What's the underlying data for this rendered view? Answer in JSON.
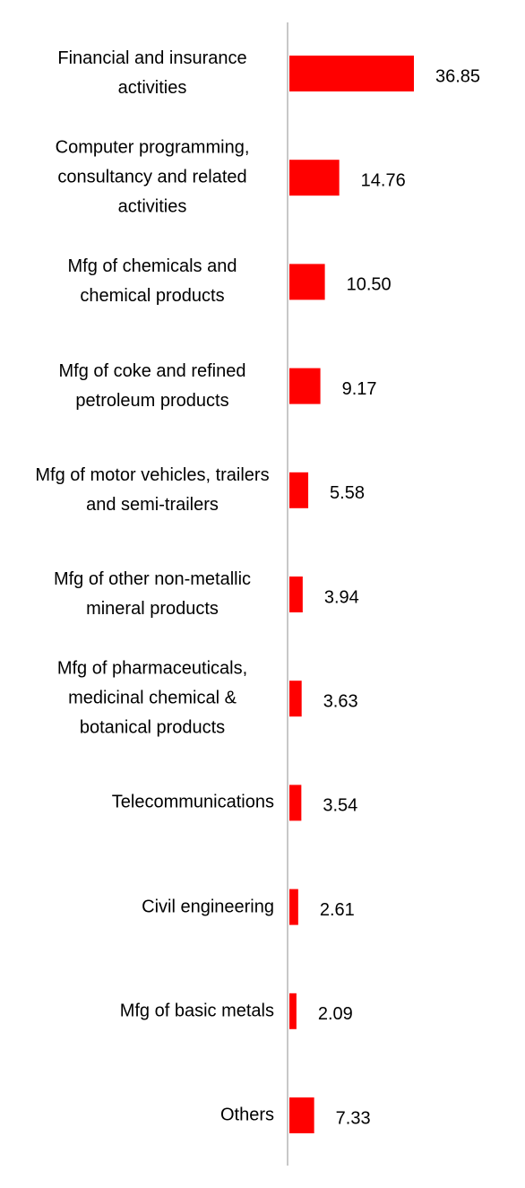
{
  "chart_data": {
    "type": "bar",
    "orientation": "horizontal",
    "categories": [
      "Financial and insurance activities",
      "Computer programming, consultancy and related activities",
      "Mfg of chemicals and chemical products",
      "Mfg of coke and refined petroleum products",
      "Mfg of motor vehicles, trailers and semi-trailers",
      "Mfg of other non-metallic mineral products",
      "Mfg of pharmaceuticals, medicinal chemical & botanical products",
      "Telecommunications",
      "Civil engineering",
      "Mfg of basic metals",
      "Others"
    ],
    "values": [
      36.85,
      14.76,
      10.5,
      9.17,
      5.58,
      3.94,
      3.63,
      3.54,
      2.61,
      2.09,
      7.33
    ],
    "value_labels": [
      "36.85",
      "14.76",
      "10.50",
      "9.17",
      "5.58",
      "3.94",
      "3.63",
      "3.54",
      "2.61",
      "2.09",
      "7.33"
    ],
    "color": "#ff0000"
  }
}
